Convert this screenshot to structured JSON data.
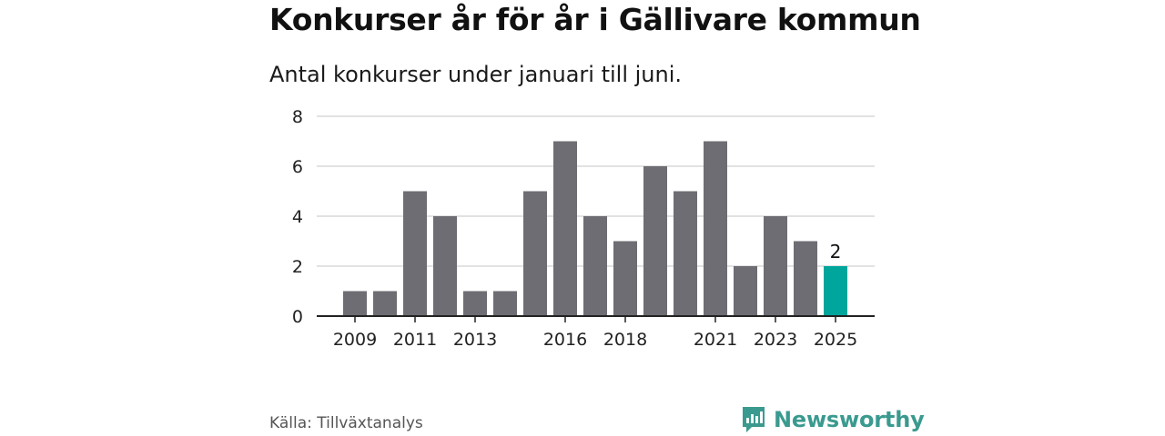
{
  "title": "Konkurser år för år i Gällivare kommun",
  "subtitle": "Antal konkurser under januari till juni.",
  "source": "Källa: Tillväxtanalys",
  "brand": {
    "name": "Newsworthy",
    "icon": "newsworthy-logo-icon",
    "color": "#3a9a8f"
  },
  "chart_data": {
    "type": "bar",
    "categories": [
      "2009",
      "2010",
      "2011",
      "2012",
      "2013",
      "2014",
      "2015",
      "2016",
      "2017",
      "2018",
      "2019",
      "2020",
      "2021",
      "2022",
      "2023",
      "2024",
      "2025"
    ],
    "values": [
      1,
      1,
      5,
      4,
      1,
      1,
      5,
      7,
      4,
      3,
      6,
      5,
      7,
      2,
      4,
      3,
      2
    ],
    "x_tick_labels": [
      "2009",
      "2011",
      "2013",
      "2016",
      "2018",
      "2021",
      "2023",
      "2025"
    ],
    "y_ticks": [
      "0",
      "2",
      "4",
      "6",
      "8"
    ],
    "ylim": [
      0,
      8
    ],
    "grid": true,
    "highlight": {
      "category": "2025",
      "label": "2",
      "color": "#00a69c"
    },
    "bar_color": "#6e6d73"
  }
}
